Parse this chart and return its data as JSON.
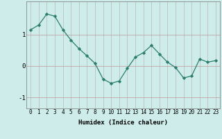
{
  "x": [
    0,
    1,
    2,
    3,
    4,
    5,
    6,
    7,
    8,
    9,
    10,
    11,
    12,
    13,
    14,
    15,
    16,
    17,
    18,
    19,
    20,
    21,
    22,
    23
  ],
  "y": [
    1.15,
    1.3,
    1.65,
    1.58,
    1.15,
    0.82,
    0.55,
    0.32,
    0.08,
    -0.42,
    -0.55,
    -0.48,
    -0.08,
    0.28,
    0.42,
    0.65,
    0.38,
    0.12,
    -0.05,
    -0.38,
    -0.32,
    0.22,
    0.12,
    0.17
  ],
  "line_color": "#2d7d6e",
  "marker": "D",
  "markersize": 2.2,
  "linewidth": 0.9,
  "bg_color": "#cdecea",
  "grid_color_v": "#b8b8b8",
  "grid_color_h": "#c09898",
  "xlabel": "Humidex (Indice chaleur)",
  "yticks": [
    -1,
    0,
    1
  ],
  "ylim": [
    -1.35,
    2.05
  ],
  "xlim": [
    -0.5,
    23.5
  ],
  "xlabel_fontsize": 6.5,
  "tick_fontsize": 5.5,
  "ytick_fontsize": 6.5
}
